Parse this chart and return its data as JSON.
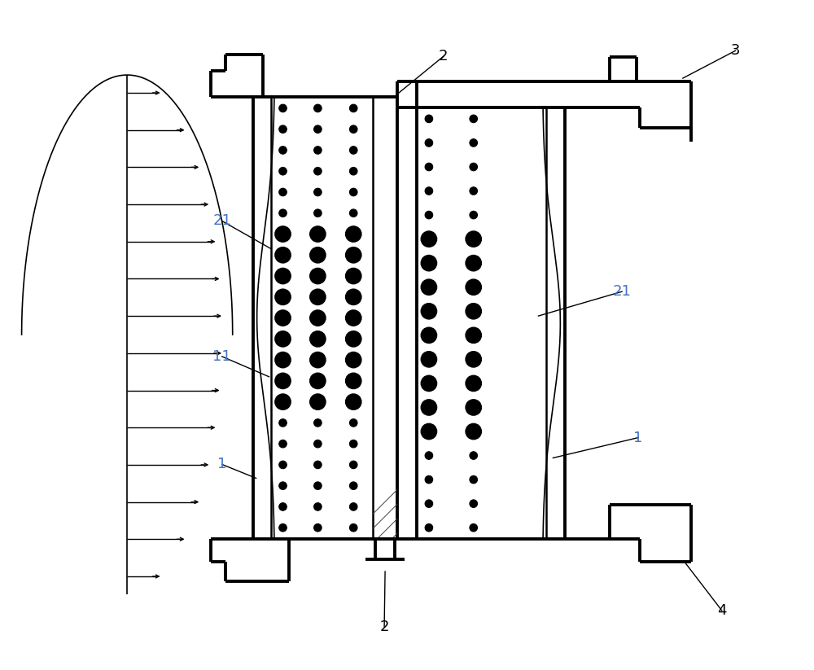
{
  "bg_color": "#ffffff",
  "line_color": "#000000",
  "label_color_blue": "#4472C4",
  "label_color_black": "#000000",
  "fig_width": 10.0,
  "fig_height": 8.23,
  "lw_thick": 2.8,
  "lw_med": 1.8,
  "lw_thin": 1.2
}
